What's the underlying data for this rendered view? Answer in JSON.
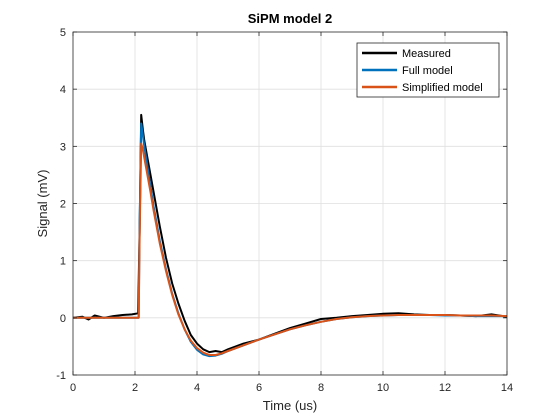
{
  "chart_data": {
    "type": "line",
    "title": "SiPM model 2",
    "xlabel": "Time (us)",
    "ylabel": "Signal (mV)",
    "xlim": [
      0,
      14
    ],
    "ylim": [
      -1,
      5
    ],
    "xticks": [
      0,
      2,
      4,
      6,
      8,
      10,
      12,
      14
    ],
    "yticks": [
      -1,
      0,
      1,
      2,
      3,
      4,
      5
    ],
    "grid": true,
    "legend_position": "top-right",
    "series": [
      {
        "name": "Measured",
        "color": "#000000",
        "x": [
          0,
          0.3,
          0.5,
          0.7,
          1.0,
          1.3,
          1.6,
          1.9,
          2.1,
          2.15,
          2.2,
          2.25,
          2.3,
          2.4,
          2.5,
          2.6,
          2.8,
          3.0,
          3.2,
          3.4,
          3.6,
          3.8,
          4.0,
          4.2,
          4.4,
          4.6,
          4.8,
          5.0,
          5.5,
          6.0,
          6.5,
          7.0,
          7.5,
          8.0,
          8.5,
          9.0,
          9.5,
          10.0,
          10.5,
          11.0,
          11.5,
          12.0,
          12.5,
          13.0,
          13.5,
          14.0
        ],
        "y": [
          0.0,
          0.02,
          -0.03,
          0.04,
          0.0,
          0.03,
          0.05,
          0.06,
          0.08,
          1.5,
          3.55,
          3.3,
          3.1,
          2.8,
          2.5,
          2.2,
          1.6,
          1.05,
          0.6,
          0.25,
          -0.05,
          -0.3,
          -0.45,
          -0.55,
          -0.6,
          -0.58,
          -0.6,
          -0.55,
          -0.45,
          -0.38,
          -0.28,
          -0.18,
          -0.1,
          -0.02,
          0.0,
          0.03,
          0.05,
          0.07,
          0.08,
          0.06,
          0.05,
          0.05,
          0.04,
          0.03,
          0.06,
          0.02
        ]
      },
      {
        "name": "Full model",
        "color": "#0072BD",
        "x": [
          0,
          1.0,
          2.0,
          2.12,
          2.15,
          2.2,
          2.25,
          2.3,
          2.4,
          2.5,
          2.6,
          2.8,
          3.0,
          3.2,
          3.4,
          3.6,
          3.8,
          4.0,
          4.2,
          4.4,
          4.6,
          4.8,
          5.0,
          5.5,
          6.0,
          6.5,
          7.0,
          7.5,
          8.0,
          8.5,
          9.0,
          9.5,
          10.0,
          10.5,
          11.0,
          11.5,
          12.0,
          12.5,
          13.0,
          13.5,
          14.0
        ],
        "y": [
          0.0,
          0.0,
          0.0,
          0.0,
          1.6,
          3.4,
          3.2,
          3.0,
          2.65,
          2.3,
          1.95,
          1.35,
          0.85,
          0.42,
          0.08,
          -0.2,
          -0.42,
          -0.56,
          -0.64,
          -0.67,
          -0.66,
          -0.63,
          -0.58,
          -0.48,
          -0.38,
          -0.29,
          -0.2,
          -0.13,
          -0.07,
          -0.02,
          0.01,
          0.03,
          0.04,
          0.05,
          0.05,
          0.05,
          0.04,
          0.04,
          0.03,
          0.03,
          0.03
        ]
      },
      {
        "name": "Simplified model",
        "color": "#D95319",
        "x": [
          0,
          1.0,
          2.0,
          2.12,
          2.15,
          2.2,
          2.25,
          2.3,
          2.4,
          2.5,
          2.6,
          2.8,
          3.0,
          3.2,
          3.4,
          3.6,
          3.8,
          4.0,
          4.2,
          4.4,
          4.6,
          4.8,
          5.0,
          5.5,
          6.0,
          6.5,
          7.0,
          7.5,
          8.0,
          8.5,
          9.0,
          9.5,
          10.0,
          10.5,
          11.0,
          11.5,
          12.0,
          12.5,
          13.0,
          13.5,
          14.0
        ],
        "y": [
          0.0,
          0.0,
          0.0,
          0.0,
          1.4,
          3.05,
          2.95,
          2.8,
          2.5,
          2.2,
          1.88,
          1.3,
          0.82,
          0.4,
          0.06,
          -0.2,
          -0.4,
          -0.53,
          -0.61,
          -0.65,
          -0.65,
          -0.62,
          -0.58,
          -0.48,
          -0.38,
          -0.29,
          -0.2,
          -0.13,
          -0.07,
          -0.02,
          0.01,
          0.03,
          0.04,
          0.05,
          0.05,
          0.05,
          0.05,
          0.04,
          0.04,
          0.04,
          0.03
        ]
      }
    ]
  }
}
